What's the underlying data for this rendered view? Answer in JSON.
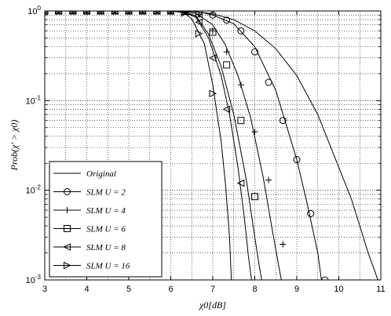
{
  "chart_data": {
    "type": "line",
    "xlabel": "χ0[dB]",
    "ylabel": "Prob(χ' > χ0)",
    "xlim": [
      3,
      11
    ],
    "ylim": [
      0.001,
      1
    ],
    "yscale": "log",
    "grid": true,
    "legend_position": "bottom-left",
    "x_ticks": [
      "3",
      "4",
      "5",
      "6",
      "7",
      "8",
      "9",
      "10",
      "11"
    ],
    "y_ticks": [
      {
        "base": "10",
        "exp": "-3",
        "value": 0.001
      },
      {
        "base": "10",
        "exp": "-2",
        "value": 0.01
      },
      {
        "base": "10",
        "exp": "-1",
        "value": 0.1
      },
      {
        "base": "10",
        "exp": "0",
        "value": 1
      }
    ],
    "series": [
      {
        "name": "Original",
        "marker": "none",
        "x": [
          3,
          5,
          6,
          6.3,
          6.6,
          7.0,
          7.5,
          8.0,
          8.5,
          9.0,
          9.5,
          10.0,
          10.3,
          10.5,
          10.7,
          10.9,
          11.0
        ],
        "y": [
          1,
          1,
          0.999,
          0.995,
          0.98,
          0.93,
          0.8,
          0.6,
          0.38,
          0.19,
          0.07,
          0.018,
          0.008,
          0.004,
          0.002,
          0.0011,
          0.0008
        ]
      },
      {
        "name": "SLM U = 2",
        "marker": "circle",
        "x": [
          3,
          3.25,
          3.5,
          3.75,
          4,
          4.25,
          4.5,
          4.75,
          5,
          5.25,
          5.5,
          5.75,
          6,
          6.25,
          6.5,
          6.75,
          7,
          7.5,
          8,
          8.5,
          9,
          9.25,
          9.5,
          9.6
        ],
        "y": [
          1,
          1,
          1,
          1,
          1,
          1,
          1,
          1,
          1,
          1,
          1,
          1,
          1,
          1,
          0.99,
          0.96,
          0.9,
          0.72,
          0.4,
          0.13,
          0.022,
          0.007,
          0.002,
          0.0009
        ],
        "marker_x": [
          3,
          3.33,
          3.67,
          4,
          4.33,
          4.67,
          5,
          5.33,
          5.67,
          6,
          6.33,
          6.67,
          7,
          7.33,
          7.67,
          8,
          8.33,
          8.67,
          9,
          9.33,
          9.67
        ],
        "marker_y": [
          1,
          1,
          1,
          1,
          1,
          1,
          1,
          1,
          1,
          1,
          1,
          0.97,
          0.9,
          0.79,
          0.6,
          0.35,
          0.16,
          0.06,
          0.022,
          0.0055,
          0.001
        ]
      },
      {
        "name": "SLM U = 4",
        "marker": "plus",
        "x": [
          3,
          4,
          5,
          6,
          6.3,
          6.6,
          7.0,
          7.3,
          7.6,
          7.9,
          8.2,
          8.4,
          8.6,
          8.7
        ],
        "y": [
          1,
          1,
          1,
          1,
          0.99,
          0.94,
          0.7,
          0.42,
          0.19,
          0.065,
          0.014,
          0.004,
          0.0012,
          0.0007
        ],
        "marker_x": [
          3,
          3.33,
          3.67,
          4,
          4.33,
          4.67,
          5,
          5.33,
          5.67,
          6,
          6.33,
          6.67,
          7,
          7.33,
          7.67,
          8,
          8.33,
          8.67
        ],
        "marker_y": [
          1,
          1,
          1,
          1,
          1,
          1,
          1,
          1,
          1,
          1,
          0.99,
          0.92,
          0.6,
          0.35,
          0.15,
          0.045,
          0.013,
          0.0025
        ]
      },
      {
        "name": "SLM U = 6",
        "marker": "square",
        "x": [
          3,
          4,
          5,
          6,
          6.3,
          6.6,
          6.9,
          7.2,
          7.5,
          7.8,
          8.0,
          8.1,
          8.2
        ],
        "y": [
          1,
          1,
          1,
          1,
          0.98,
          0.88,
          0.55,
          0.24,
          0.07,
          0.013,
          0.003,
          0.0015,
          0.0008
        ],
        "marker_x": [
          3,
          3.33,
          3.67,
          4,
          4.33,
          4.67,
          5,
          5.33,
          5.67,
          6,
          6.33,
          6.67,
          7,
          7.33,
          7.67,
          8
        ],
        "marker_y": [
          1,
          1,
          1,
          1,
          1,
          1,
          1,
          1,
          1,
          1,
          0.99,
          0.93,
          0.58,
          0.25,
          0.06,
          0.0085
        ]
      },
      {
        "name": "SLM U = 8",
        "marker": "triangle-left",
        "x": [
          3,
          4,
          5,
          6,
          6.3,
          6.6,
          6.9,
          7.2,
          7.4,
          7.6,
          7.75,
          7.85,
          7.95
        ],
        "y": [
          1,
          1,
          1,
          1,
          0.97,
          0.85,
          0.5,
          0.19,
          0.07,
          0.018,
          0.005,
          0.0018,
          0.0008
        ],
        "marker_x": [
          3,
          3.33,
          3.67,
          4,
          4.33,
          4.67,
          5,
          5.33,
          5.67,
          6,
          6.33,
          6.67,
          7,
          7.33,
          7.67
        ],
        "marker_y": [
          1,
          1,
          1,
          1,
          1,
          1,
          1,
          1,
          1,
          1,
          0.98,
          0.75,
          0.3,
          0.08,
          0.012
        ]
      },
      {
        "name": "SLM U = 16",
        "marker": "triangle-right",
        "x": [
          3,
          4,
          5,
          6,
          6.3,
          6.5,
          6.8,
          7.0,
          7.2,
          7.3,
          7.4,
          7.45
        ],
        "y": [
          1,
          1,
          1,
          1,
          0.96,
          0.82,
          0.43,
          0.15,
          0.035,
          0.012,
          0.003,
          0.0008
        ],
        "marker_x": [
          3,
          3.33,
          3.67,
          4,
          4.33,
          4.67,
          5,
          5.33,
          5.67,
          6,
          6.33,
          6.67,
          7
        ],
        "marker_y": [
          1,
          1,
          1,
          1,
          1,
          1,
          1,
          1,
          1,
          1,
          0.95,
          0.56,
          0.12
        ]
      }
    ],
    "legend": [
      {
        "label": "Original",
        "marker": "none"
      },
      {
        "label": "SLM U = 2",
        "marker": "circle"
      },
      {
        "label": "SLM U = 4",
        "marker": "plus"
      },
      {
        "label": "SLM U = 6",
        "marker": "square"
      },
      {
        "label": "SLM U = 8",
        "marker": "triangle-left"
      },
      {
        "label": "SLM U = 16",
        "marker": "triangle-right"
      }
    ]
  }
}
